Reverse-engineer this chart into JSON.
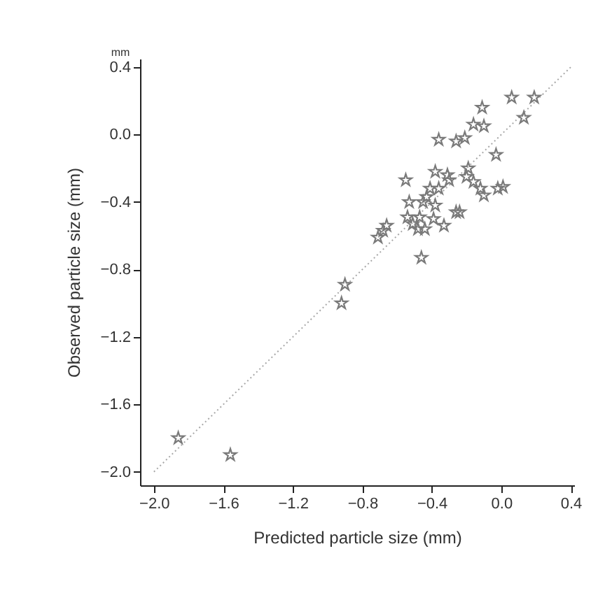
{
  "chart_data": {
    "type": "scatter",
    "xlabel": "Predicted particle size (mm)",
    "ylabel": "Observed particle size (mm)",
    "annotations": [
      "mm"
    ],
    "xlim": [
      -2.08,
      0.42
    ],
    "ylim": [
      -2.08,
      0.45
    ],
    "xticks": [
      {
        "value": -2.0,
        "label": "−2.0"
      },
      {
        "value": -1.6,
        "label": "−1.6"
      },
      {
        "value": -1.2,
        "label": "−1.2"
      },
      {
        "value": -0.8,
        "label": "−0.8"
      },
      {
        "value": -0.4,
        "label": "−0.4"
      },
      {
        "value": 0.0,
        "label": "0.0"
      },
      {
        "value": 0.4,
        "label": "0.4"
      }
    ],
    "yticks": [
      {
        "value": -2.0,
        "label": "−2.0"
      },
      {
        "value": -1.6,
        "label": "−1.6"
      },
      {
        "value": -1.2,
        "label": "−1.2"
      },
      {
        "value": -0.8,
        "label": "−0.8"
      },
      {
        "value": -0.4,
        "label": "−0.4"
      },
      {
        "value": 0.0,
        "label": "0.0"
      },
      {
        "value": 0.4,
        "label": "0.4"
      }
    ],
    "grid": false,
    "marker": "star",
    "series": [
      {
        "type": "line",
        "marker": "none",
        "color": "#a8a8a8",
        "line_style": "dotted",
        "x": [
          -2.0,
          0.4
        ],
        "values": [
          -2.0,
          0.4
        ]
      },
      {
        "color": "#7a7a7a",
        "x": [
          0.06,
          0.19,
          -0.11,
          0.13,
          -0.16,
          -0.1,
          -0.36,
          -0.26,
          -0.21,
          -0.03,
          -0.38,
          -0.31,
          -0.3,
          -0.19,
          -0.2,
          -0.16,
          -0.55,
          -0.41,
          -0.36,
          -0.12,
          -0.1,
          -0.02,
          0.01,
          -0.53,
          -0.45,
          -0.38,
          -0.43,
          -0.54,
          -0.47,
          -0.39,
          -0.51,
          -0.48,
          -0.44,
          -0.33,
          -0.26,
          -0.24,
          -0.66,
          -0.68,
          -0.71,
          -0.46,
          -0.9,
          -0.92,
          -1.86,
          -1.56
        ],
        "values": [
          0.22,
          0.22,
          0.16,
          0.1,
          0.06,
          0.05,
          -0.03,
          -0.04,
          -0.02,
          -0.12,
          -0.22,
          -0.24,
          -0.27,
          -0.2,
          -0.25,
          -0.28,
          -0.27,
          -0.32,
          -0.32,
          -0.32,
          -0.36,
          -0.32,
          -0.31,
          -0.4,
          -0.4,
          -0.42,
          -0.37,
          -0.49,
          -0.49,
          -0.5,
          -0.53,
          -0.56,
          -0.56,
          -0.54,
          -0.46,
          -0.46,
          -0.54,
          -0.57,
          -0.61,
          -0.73,
          -0.89,
          -1.0,
          -1.8,
          -1.9
        ]
      }
    ]
  }
}
